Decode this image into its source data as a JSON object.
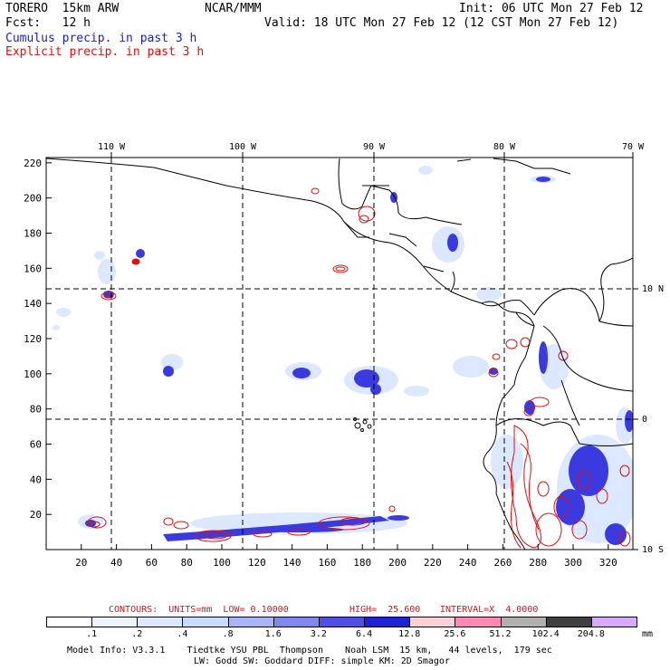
{
  "header": {
    "model": "TORERO  15km ARW",
    "org": "NCAR/MMM",
    "init": "Init: 06 UTC Mon 27 Feb 12",
    "fcst": "Fcst:   12 h",
    "valid": "Valid: 18 UTC Mon 27 Feb 12 (12 CST Mon 27 Feb 12)",
    "line1": "Cumulus precip. in past 3 h",
    "line2": "Explicit precip. in past 3 h"
  },
  "map": {
    "top_lon_labels": [
      "110 W",
      "100 W",
      "90 W",
      "80 W",
      "70 W"
    ],
    "right_lat_labels": [
      "10 N",
      "0",
      "10 S"
    ],
    "x_ticks": [
      "20",
      "40",
      "60",
      "80",
      "100",
      "120",
      "140",
      "160",
      "180",
      "200",
      "220",
      "240",
      "260",
      "280",
      "300",
      "320"
    ],
    "y_ticks": [
      "20",
      "40",
      "60",
      "80",
      "100",
      "120",
      "140",
      "160",
      "180",
      "200",
      "220"
    ],
    "colors": {
      "cumulus_fill": "#3a3ae0",
      "explicit_contour": "#e01010",
      "coast": "#000000"
    }
  },
  "contours_line": {
    "prefix": "CONTOURS:  UNITS=mm  LOW= 0.10000",
    "high": "HIGH=  25.600",
    "interval": "INTERVAL=X  4.0000"
  },
  "colorbar": {
    "labels": [
      ".1",
      ".2",
      ".4",
      ".8",
      "1.6",
      "3.2",
      "6.4",
      "12.8",
      "25.6",
      "51.2",
      "102.4",
      "204.8"
    ],
    "unit": "mm",
    "colors": [
      "#ffffff",
      "#eef4ff",
      "#dce8ff",
      "#c8dcff",
      "#aab4f8",
      "#8088f0",
      "#5050e6",
      "#2020d8",
      "#ffd0d8",
      "#ff88b4",
      "#b0b0b0",
      "#404040",
      "#d6aaff"
    ]
  },
  "footer": {
    "line1": "Model Info: V3.3.1    Tiedtke YSU PBL  Thompson    Noah LSM  15 km,   44 levels,  179 sec",
    "line2": "LW: Godd SW: Goddard DIFF: simple KM: 2D Smagor"
  }
}
